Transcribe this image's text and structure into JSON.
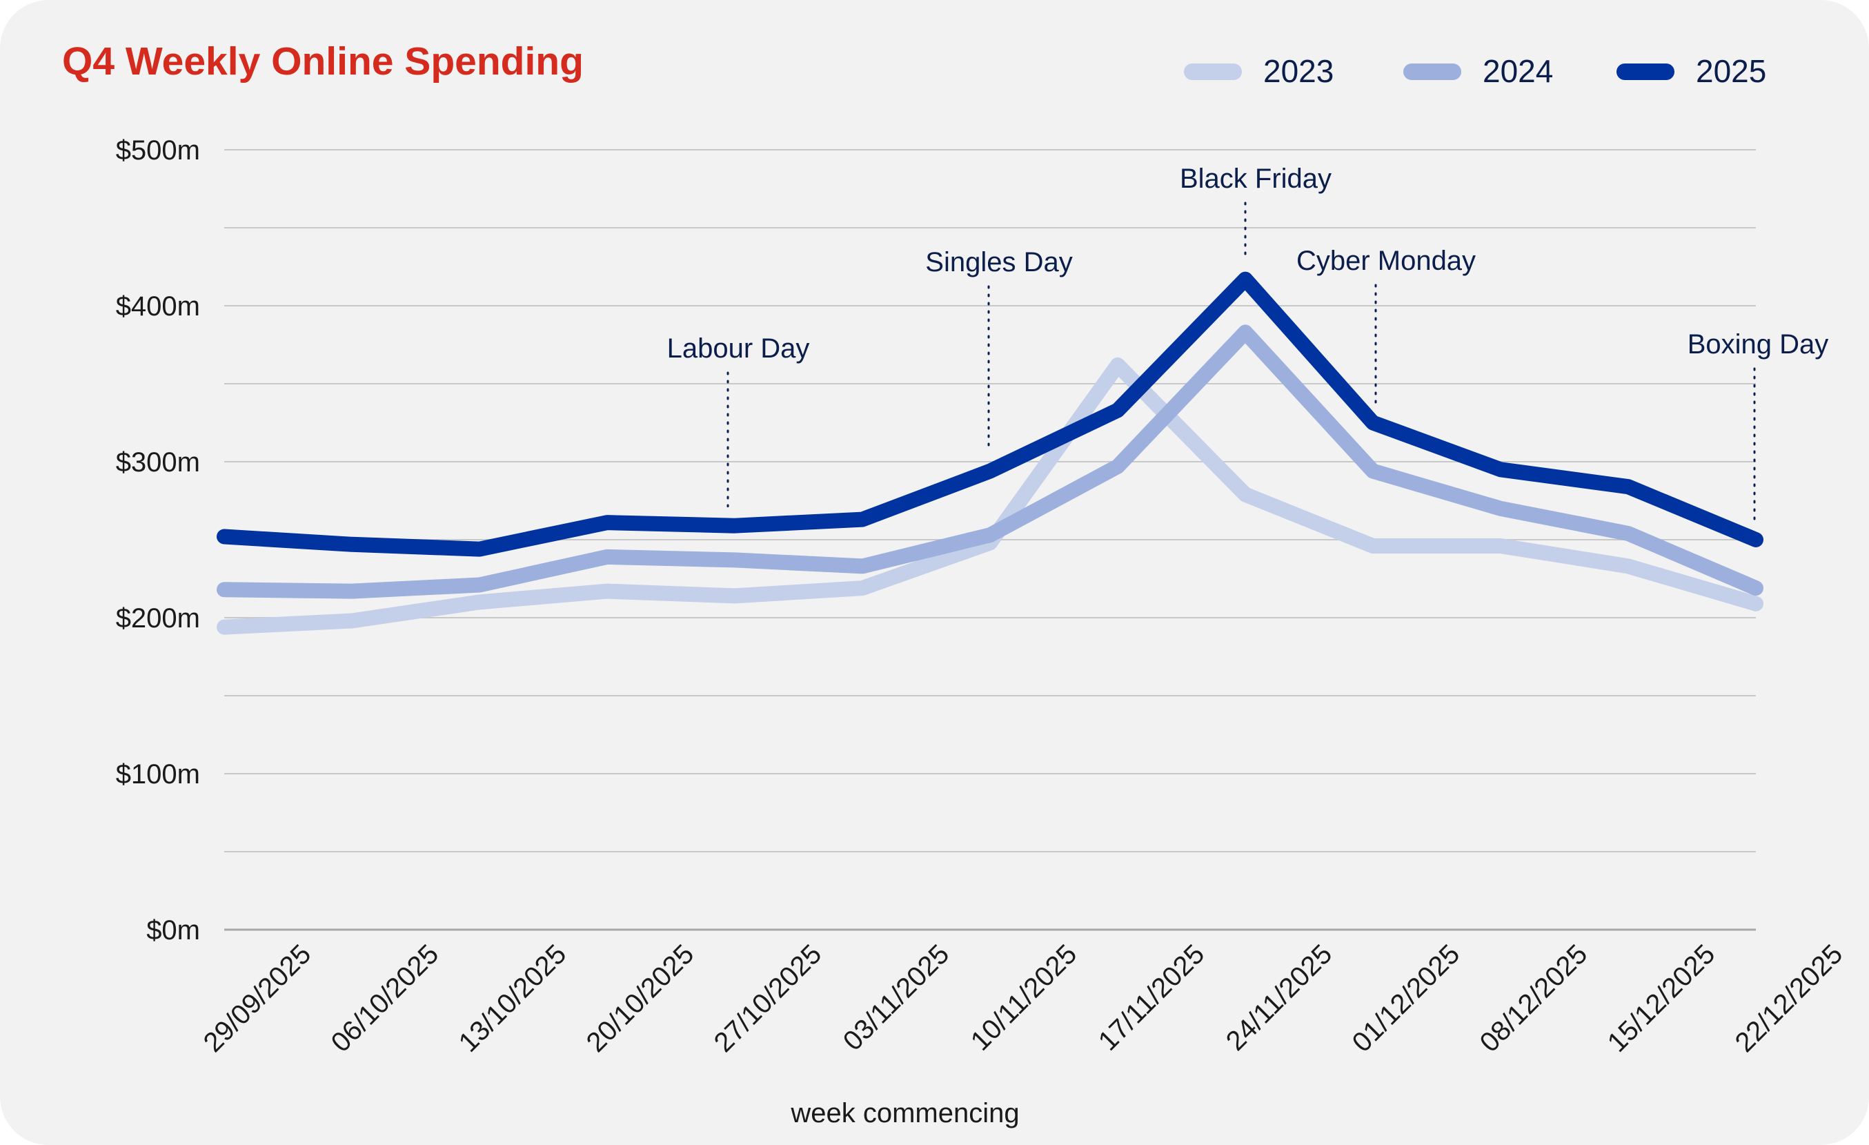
{
  "chart_data": {
    "type": "line",
    "title": "Q4 Weekly Online Spending",
    "xlabel": "week commencing",
    "ylabel": "",
    "ylim": [
      0,
      500
    ],
    "yticks": [
      0,
      100,
      200,
      300,
      400,
      500
    ],
    "ytick_labels": [
      "$0m",
      "$100m",
      "$200m",
      "$300m",
      "$400m",
      "$500m"
    ],
    "grid": true,
    "legend_position": "top-right",
    "categories": [
      "29/09/2025",
      "06/10/2025",
      "13/10/2025",
      "20/10/2025",
      "27/10/2025",
      "03/11/2025",
      "10/11/2025",
      "17/11/2025",
      "24/11/2025",
      "01/12/2025",
      "08/12/2025",
      "15/12/2025",
      "22/12/2025"
    ],
    "series": [
      {
        "name": "2023",
        "color": "#c4cfea",
        "values": [
          194,
          198,
          210,
          217,
          214,
          219,
          248,
          362,
          279,
          246,
          246,
          233,
          209
        ]
      },
      {
        "name": "2024",
        "color": "#9dafdc",
        "values": [
          218,
          217,
          221,
          239,
          237,
          233,
          253,
          297,
          383,
          294,
          270,
          254,
          219
        ]
      },
      {
        "name": "2025",
        "color": "#0033a0",
        "values": [
          252,
          247,
          244,
          261,
          259,
          263,
          294,
          333,
          417,
          325,
          295,
          284,
          250
        ]
      }
    ],
    "annotations": [
      {
        "label": "Labour Day",
        "category": "27/10/2025"
      },
      {
        "label": "Singles Day",
        "category": "10/11/2025"
      },
      {
        "label": "Black Friday",
        "category": "24/11/2025"
      },
      {
        "label": "Cyber Monday",
        "category": "01/12/2025"
      },
      {
        "label": "Boxing Day",
        "category": "22/12/2025"
      }
    ],
    "colors": {
      "title": "#d52b1e",
      "text": "#1a1a1a",
      "annotation_text": "#0b1d4a",
      "grid": "#c8c8c8",
      "axis": "#a8a8a8",
      "background": "#f2f2f2"
    }
  }
}
